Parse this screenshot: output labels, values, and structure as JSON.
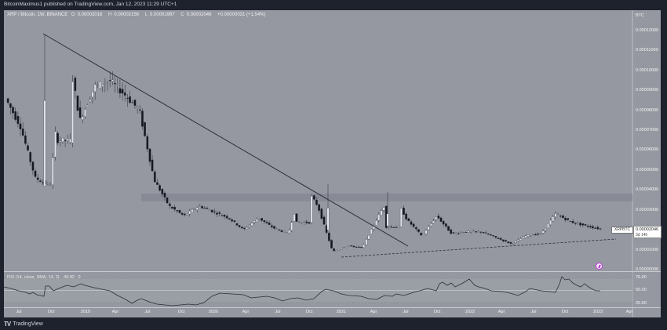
{
  "header": {
    "publisher_line": "BitcoinMaximus1 published on TradingView.com, Jan 12, 2023 11:29 UTC+1"
  },
  "legend": {
    "symbol": "XRP / Bitcoin, 1W, BINANCE",
    "open_label": "O",
    "open": "0.00002016",
    "high_label": "H",
    "high": "0.00002156",
    "low_label": "L",
    "low": "0.00001997",
    "close_label": "C",
    "close": "0.00002046",
    "change": "+0.00000031 (+1.54%)"
  },
  "price_axis": {
    "unit": "BTC",
    "ticks": [
      "0.00012000",
      "0.00011000",
      "0.00010000",
      "0.00009000",
      "0.00008000",
      "0.00007000",
      "0.00006000",
      "0.00005000",
      "0.00004000",
      "0.00003000",
      "0.00001000",
      "0.00000000"
    ]
  },
  "last_price_tag": {
    "symbol": "XRPBTC",
    "value": "0.00002046",
    "countdown": "3d 14h"
  },
  "rsi": {
    "legend": "RSI (14, close, SMA, 14, 2)",
    "value": "49.82",
    "extra": "0",
    "ticks": [
      "75.00",
      "50.00",
      "25.00"
    ]
  },
  "time_axis": {
    "labels": [
      "Jul",
      "Oct",
      "2019",
      "Apr",
      "Jul",
      "Oct",
      "2020",
      "Apr",
      "Jul",
      "Oct",
      "2021",
      "Apr",
      "Jul",
      "Oct",
      "2022",
      "Apr",
      "Jul",
      "Oct",
      "2023",
      "Apr"
    ]
  },
  "footer": {
    "brand": "TradingView"
  },
  "colors": {
    "background": "#9598a1",
    "frame": "#1e222d",
    "up_candle": "#e0e3eb",
    "down_candle": "#131722",
    "trendline": "#2a2e39",
    "resistance_zone": "#868993",
    "flash_icon": "#c03adb"
  },
  "chart_data": [
    {
      "type": "candlestick",
      "title": "XRP / Bitcoin, 1W, BINANCE",
      "xlabel": "",
      "ylabel": "BTC",
      "ylim": [
        0,
        0.000125
      ],
      "x_range": [
        "2018-05",
        "2023-04"
      ],
      "series_summary": [
        {
          "date": "2018-05",
          "price": 8.6e-05
        },
        {
          "date": "2018-07",
          "price": 7.2e-05
        },
        {
          "date": "2018-08",
          "price": 4.6e-05
        },
        {
          "date": "2018-09-mid",
          "price": 4.2e-05
        },
        {
          "date": "2018-09-spike_high",
          "price": 0.000118
        },
        {
          "date": "2018-10",
          "price": 7.5e-05
        },
        {
          "date": "2018-11",
          "price": 9.2e-05
        },
        {
          "date": "2018-12",
          "price": 9.5e-05
        },
        {
          "date": "2019-01",
          "price": 8.8e-05
        },
        {
          "date": "2019-04",
          "price": 8e-05
        },
        {
          "date": "2019-06",
          "price": 4.5e-05
        },
        {
          "date": "2019-07",
          "price": 3.2e-05
        },
        {
          "date": "2019-09",
          "price": 2.7e-05
        },
        {
          "date": "2019-10",
          "price": 3.2e-05
        },
        {
          "date": "2019-12",
          "price": 2.9e-05
        },
        {
          "date": "2020-03",
          "price": 2.6e-05
        },
        {
          "date": "2020-06",
          "price": 2e-05
        },
        {
          "date": "2020-08",
          "price": 2.6e-05
        },
        {
          "date": "2020-10",
          "price": 2.1e-05
        },
        {
          "date": "2020-11",
          "price": 1.8e-05
        },
        {
          "date": "2020-11-spike_high",
          "price": 4.3e-05
        },
        {
          "date": "2020-12",
          "price": 3.2e-05
        },
        {
          "date": "2021-01",
          "price": 9e-06
        },
        {
          "date": "2021-02",
          "price": 1.2e-05
        },
        {
          "date": "2021-03",
          "price": 1.1e-05
        },
        {
          "date": "2021-04",
          "price": 2.6e-05
        },
        {
          "date": "2021-04-spike_high",
          "price": 3.9e-05
        },
        {
          "date": "2021-05",
          "price": 2.5e-05
        },
        {
          "date": "2021-07",
          "price": 1.7e-05
        },
        {
          "date": "2021-08",
          "price": 2.7e-05
        },
        {
          "date": "2021-10",
          "price": 1.8e-05
        },
        {
          "date": "2022-01",
          "price": 1.9e-05
        },
        {
          "date": "2022-03",
          "price": 1.9e-05
        },
        {
          "date": "2022-05",
          "price": 1.6e-05
        },
        {
          "date": "2022-06",
          "price": 1.3e-05
        },
        {
          "date": "2022-08",
          "price": 1.7e-05
        },
        {
          "date": "2022-09",
          "price": 1.8e-05
        },
        {
          "date": "2022-10",
          "price": 2.8e-05
        },
        {
          "date": "2022-11",
          "price": 2.4e-05
        },
        {
          "date": "2022-12",
          "price": 2.2e-05
        },
        {
          "date": "2023-01",
          "price": 2.046e-05
        }
      ],
      "annotations": [
        {
          "type": "descending_trendline",
          "from": {
            "date": "2018-09",
            "price": 0.000118
          },
          "to": {
            "date": "2021-07",
            "price": 1.3e-05
          }
        },
        {
          "type": "ascending_dashed_support",
          "from": {
            "date": "2021-01",
            "price": 7.5e-06
          },
          "to": {
            "date": "2023-02",
            "price": 1.5e-05
          }
        },
        {
          "type": "horizontal_resistance_zone",
          "price_low": 3.4e-05,
          "price_high": 3.8e-05
        }
      ],
      "last_value": 2.046e-05
    },
    {
      "type": "line",
      "title": "RSI (14, close, SMA, 14, 2)",
      "ylim": [
        20,
        80
      ],
      "reference_lines": [
        70,
        50,
        30
      ],
      "x": [
        "2018-05",
        "2018-07",
        "2018-09",
        "2018-10",
        "2018-12",
        "2019-02",
        "2019-04",
        "2019-06",
        "2019-08",
        "2019-10",
        "2019-12",
        "2020-02",
        "2020-04",
        "2020-06",
        "2020-07",
        "2020-09",
        "2020-11",
        "2020-12",
        "2021-01",
        "2021-03",
        "2021-04",
        "2021-05",
        "2021-07",
        "2021-08",
        "2021-10",
        "2021-12",
        "2022-02",
        "2022-04",
        "2022-06",
        "2022-07",
        "2022-09",
        "2022-10",
        "2022-11",
        "2023-01"
      ],
      "values": [
        55,
        47,
        44,
        65,
        60,
        64,
        56,
        42,
        33,
        38,
        50,
        49,
        45,
        40,
        53,
        51,
        35,
        70,
        39,
        45,
        65,
        58,
        54,
        56,
        51,
        50,
        49,
        52,
        40,
        52,
        52,
        72,
        60,
        50
      ]
    }
  ]
}
